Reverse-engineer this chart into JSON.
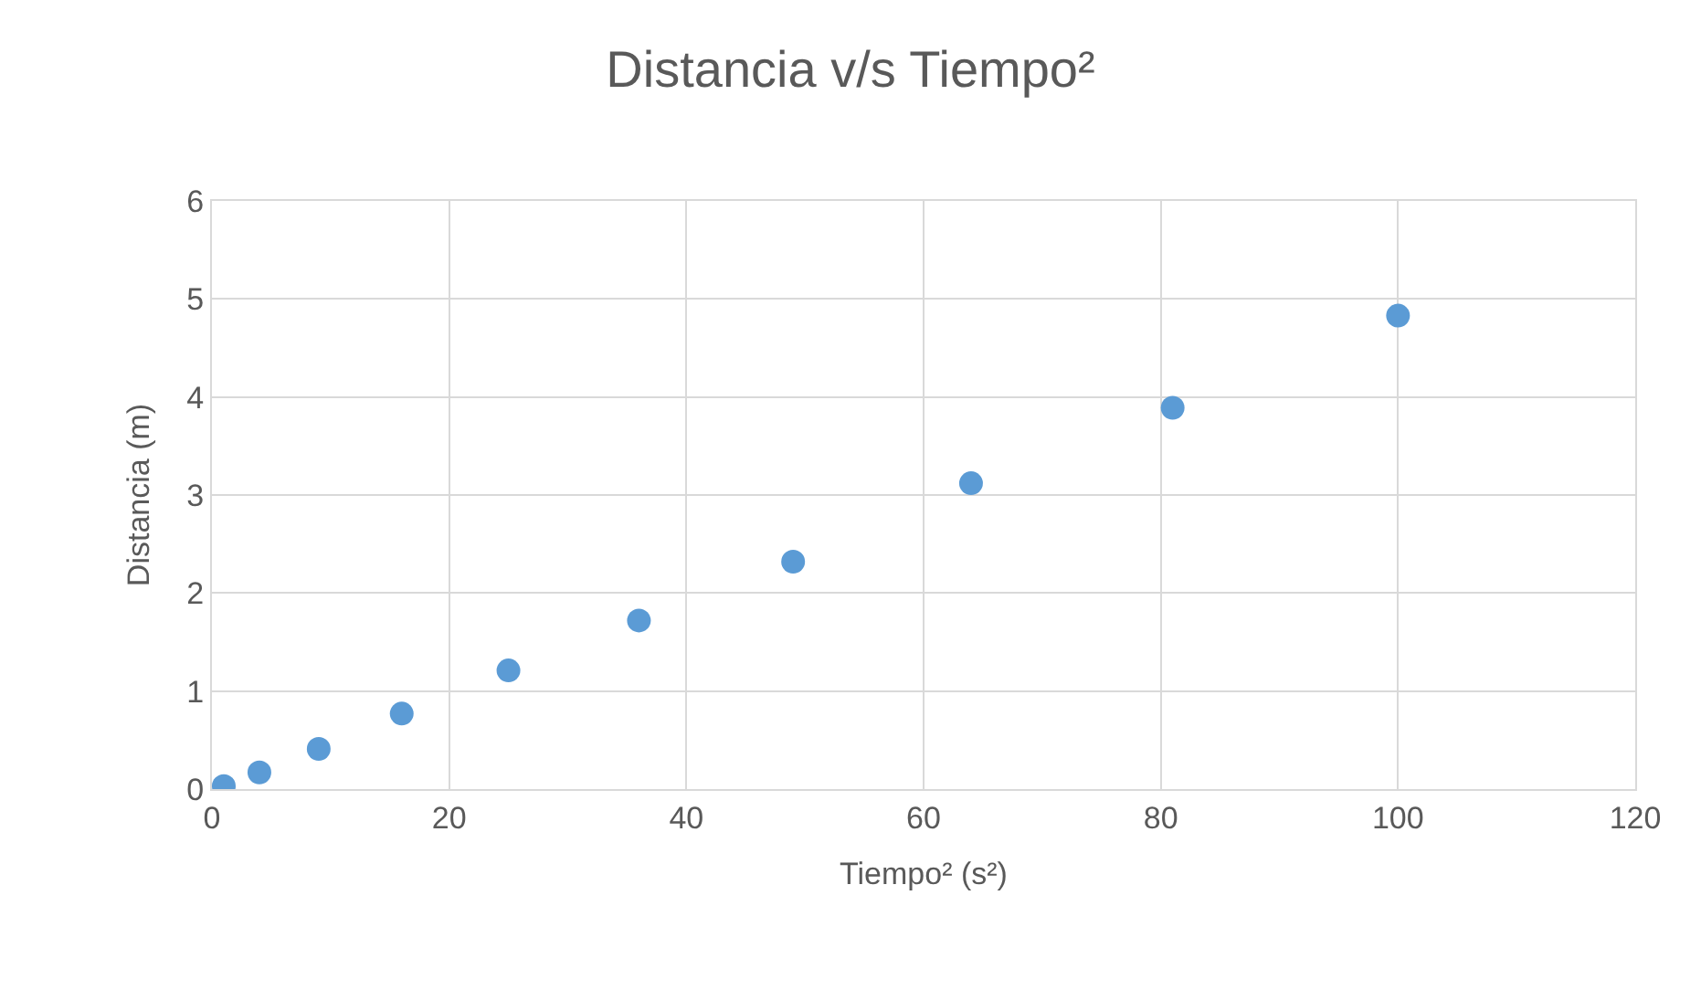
{
  "chart_data": {
    "type": "scatter",
    "title": "Distancia v/s Tiempo²",
    "xlabel": "Tiempo² (s²)",
    "ylabel": "Distancia (m)",
    "x": [
      1,
      4,
      9,
      16,
      25,
      36,
      49,
      64,
      81,
      100
    ],
    "series": [
      {
        "color": "#5b9bd5",
        "values": [
          0.03,
          0.17,
          0.41,
          0.77,
          1.21,
          1.72,
          2.32,
          3.12,
          3.89,
          4.83
        ]
      }
    ],
    "xlim": [
      0,
      120
    ],
    "xticks": [
      0,
      20,
      40,
      60,
      80,
      100,
      120
    ],
    "ylim": [
      0,
      6
    ],
    "yticks": [
      0,
      1,
      2,
      3,
      4,
      5,
      6
    ],
    "grid": true,
    "marker": "circle"
  }
}
